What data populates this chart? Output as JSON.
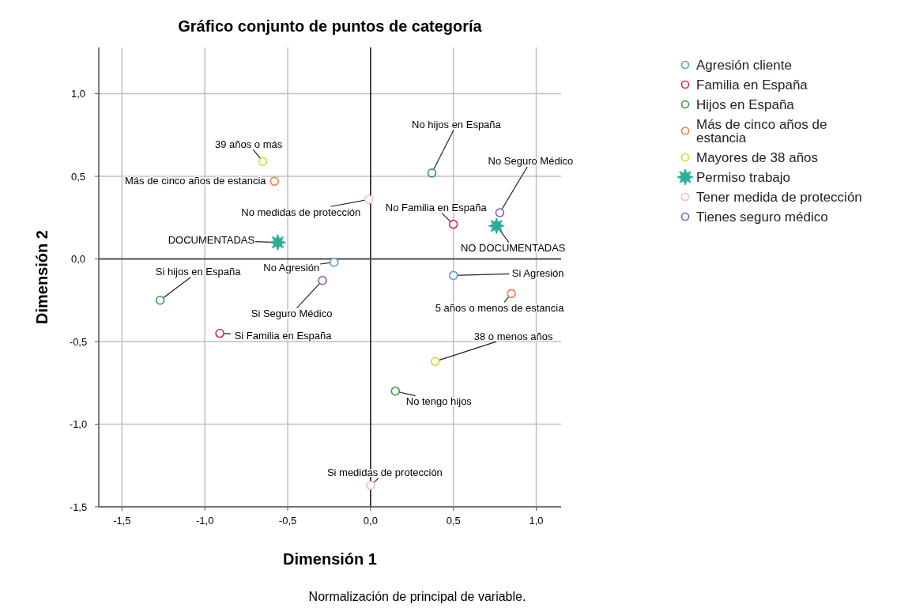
{
  "chart_data": {
    "type": "scatter",
    "title": "Gráfico conjunto de puntos de categoría",
    "xlabel": "Dimensión 1",
    "ylabel": "Dimensión 2",
    "xlim": [
      -1.64,
      1.15
    ],
    "ylim": [
      -1.5,
      1.28
    ],
    "xticks": [
      {
        "value": -1.5,
        "label": "-1,5"
      },
      {
        "value": -1.0,
        "label": "-1,0"
      },
      {
        "value": -0.5,
        "label": "-0,5"
      },
      {
        "value": 0,
        "label": "0,0"
      },
      {
        "value": 0.5,
        "label": "0,5"
      },
      {
        "value": 1.0,
        "label": "1,0"
      }
    ],
    "yticks": [
      {
        "value": -1.5,
        "label": "-1,5"
      },
      {
        "value": -1.0,
        "label": "-1,0"
      },
      {
        "value": -0.5,
        "label": "-0,5"
      },
      {
        "value": 0,
        "label": "0,0"
      },
      {
        "value": 0.5,
        "label": "0,5"
      },
      {
        "value": 1.0,
        "label": "1,0"
      }
    ],
    "grid": true,
    "legend": "right",
    "marker": "circle",
    "ref_lines": [
      {
        "axis": "x",
        "value": 0,
        "color": "#000000"
      },
      {
        "axis": "y",
        "value": 0,
        "color": "#555555"
      }
    ],
    "series": [
      {
        "name": "Agresión cliente",
        "color": "#5b9bd5",
        "x": [
          -0.22,
          0.5
        ],
        "values": [
          -0.02,
          -0.1
        ]
      },
      {
        "name": "Familia en España",
        "color": "#e0244f",
        "x": [
          0.5,
          -0.91
        ],
        "values": [
          0.21,
          -0.45
        ]
      },
      {
        "name": "Hijos en España",
        "color": "#3a9a4a",
        "x": [
          0.37,
          -1.27,
          0.15
        ],
        "values": [
          0.52,
          -0.25,
          -0.8
        ]
      },
      {
        "name": "Más de cinco años de estancia",
        "color": "#f07a4a",
        "x": [
          -0.58,
          0.85
        ],
        "values": [
          0.47,
          -0.21
        ]
      },
      {
        "name": "Mayores de 38 años",
        "color": "#d8d830",
        "x": [
          -0.65,
          0.39
        ],
        "values": [
          0.59,
          -0.62
        ]
      },
      {
        "name": "Permiso trabajo",
        "color": "#2ab09a",
        "marker": "star",
        "x": [
          -0.56,
          0.76
        ],
        "values": [
          0.1,
          0.2
        ]
      },
      {
        "name": "Tener medida de protección",
        "color": "#f4b8cc",
        "x": [
          -0.01,
          0.0
        ],
        "values": [
          0.36,
          -1.37
        ]
      },
      {
        "name": "Tienes seguro médico",
        "color": "#8a58b8",
        "x": [
          0.78,
          -0.29
        ],
        "values": [
          0.28,
          -0.13
        ]
      }
    ],
    "annotations": [
      {
        "text": "No Agresión",
        "x": -0.22,
        "y": -0.02
      },
      {
        "text": "Si Agresión",
        "x": 0.5,
        "y": -0.1
      },
      {
        "text": "No Familia en España",
        "x": 0.5,
        "y": 0.21
      },
      {
        "text": "Si Familia en España",
        "x": -0.91,
        "y": -0.45
      },
      {
        "text": "No hijos en España",
        "x": 0.37,
        "y": 0.52
      },
      {
        "text": "Si hijos en España",
        "x": -1.27,
        "y": -0.25
      },
      {
        "text": "No tengo hijos",
        "x": 0.15,
        "y": -0.8
      },
      {
        "text": "Más de cinco años de estancia",
        "x": -0.58,
        "y": 0.47
      },
      {
        "text": "5 años o menos de estancia",
        "x": 0.85,
        "y": -0.21
      },
      {
        "text": "39 años o más",
        "x": -0.65,
        "y": 0.59
      },
      {
        "text": "38 o menos años",
        "x": 0.39,
        "y": -0.62
      },
      {
        "text": "DOCUMENTADAS",
        "x": -0.56,
        "y": 0.1
      },
      {
        "text": "NO DOCUMENTADAS",
        "x": 0.76,
        "y": 0.2
      },
      {
        "text": "No medidas de protección",
        "x": -0.01,
        "y": 0.36
      },
      {
        "text": "Si medidas de protección",
        "x": 0.0,
        "y": -1.37
      },
      {
        "text": "No Seguro Médico",
        "x": 0.78,
        "y": 0.28
      },
      {
        "text": "Si Seguro Médico",
        "x": -0.29,
        "y": -0.13
      },
      "Normalización de principal de variable."
    ]
  }
}
